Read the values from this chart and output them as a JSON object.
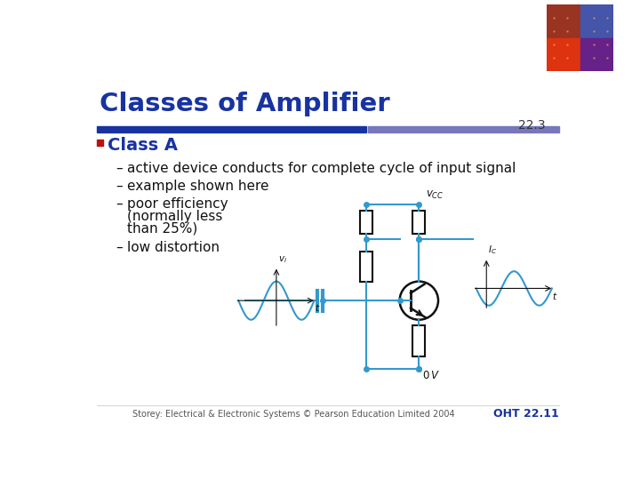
{
  "title": "Classes of Amplifier",
  "section_number": "22.3",
  "class_label": "Class A",
  "bullet1": "active device conducts for complete cycle of input signal",
  "bullet2": "example shown here",
  "bullet3a": "poor efficiency",
  "bullet3b": "(normally less",
  "bullet3c": "than 25%)",
  "bullet4": "low distortion",
  "footer_left": "Storey: Electrical & Electronic Systems © Pearson Education Limited 2004",
  "footer_right": "OHT 22.11",
  "title_color": "#1833a0",
  "bar_color_left": "#1833a0",
  "bar_color_right": "#7777bb",
  "class_color": "#bb1111",
  "bullet_color": "#111111",
  "bg_color": "#ffffff",
  "circuit_color": "#3399cc",
  "footer_right_color": "#1833a0"
}
